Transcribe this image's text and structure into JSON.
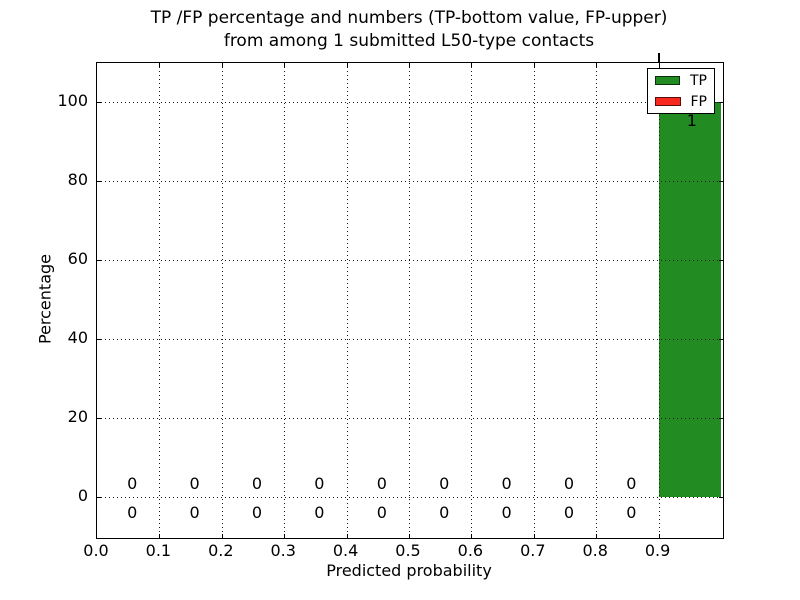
{
  "title": {
    "line1": "TP /FP percentage and numbers (TP-bottom value, FP-upper)",
    "line2": "from among 1 submitted L50-type contacts"
  },
  "axes": {
    "x_label": "Predicted probability",
    "y_label": "Percentage"
  },
  "legend": {
    "position": "upper right",
    "items": [
      {
        "label": "TP",
        "color": "#228b22"
      },
      {
        "label": "FP",
        "color": "#f8281e"
      }
    ]
  },
  "chart_data": {
    "type": "bar",
    "title": "TP /FP percentage and numbers (TP-bottom value, FP-upper) from among 1 submitted L50-type contacts",
    "xlabel": "Predicted probability",
    "ylabel": "Percentage",
    "x_ticks": [
      "0.0",
      "0.1",
      "0.2",
      "0.3",
      "0.4",
      "0.5",
      "0.6",
      "0.7",
      "0.8",
      "0.9"
    ],
    "y_ticks": [
      "0",
      "20",
      "40",
      "60",
      "80",
      "100"
    ],
    "xlim": [
      0.0,
      1.0
    ],
    "ylim": [
      -10,
      110
    ],
    "grid": true,
    "grid_style": "dotted",
    "bar_width": 0.1,
    "bins": [
      [
        0.0,
        0.1
      ],
      [
        0.1,
        0.2
      ],
      [
        0.2,
        0.3
      ],
      [
        0.3,
        0.4
      ],
      [
        0.4,
        0.5
      ],
      [
        0.5,
        0.6
      ],
      [
        0.6,
        0.7
      ],
      [
        0.7,
        0.8
      ],
      [
        0.8,
        0.9
      ],
      [
        0.9,
        1.0
      ]
    ],
    "series": [
      {
        "name": "TP",
        "color": "#228b22",
        "percent": [
          0,
          0,
          0,
          0,
          0,
          0,
          0,
          0,
          0,
          100
        ],
        "counts": [
          0,
          0,
          0,
          0,
          0,
          0,
          0,
          0,
          0,
          1
        ]
      },
      {
        "name": "FP",
        "color": "#f8281e",
        "percent": [
          0,
          0,
          0,
          0,
          0,
          0,
          0,
          0,
          0,
          0
        ],
        "counts_visible": [
          0,
          0,
          0,
          0,
          0,
          0,
          0,
          0,
          0
        ]
      }
    ],
    "annotations": {
      "upper_row_fp": [
        "0",
        "0",
        "0",
        "0",
        "0",
        "0",
        "0",
        "0",
        "0"
      ],
      "lower_row_tp": [
        "0",
        "0",
        "0",
        "0",
        "0",
        "0",
        "0",
        "0",
        "0"
      ],
      "bar_label_tp": "1"
    }
  }
}
